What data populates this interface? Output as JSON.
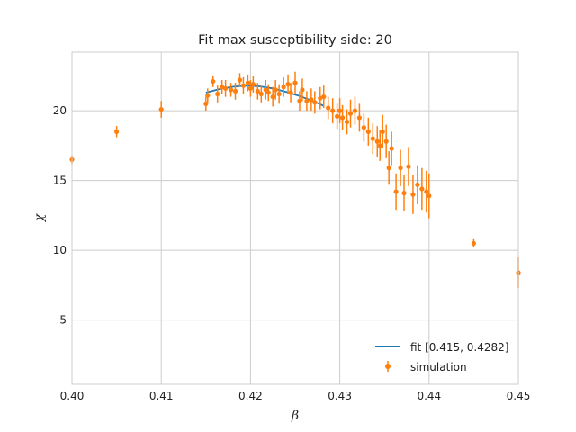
{
  "chart_data": {
    "type": "scatter",
    "title": "Fit max susceptibility side: 20",
    "xlabel": "β",
    "ylabel": "χ",
    "xlim": [
      0.4,
      0.45
    ],
    "ylim": [
      0.4,
      24.2
    ],
    "xticks": [
      "0.40",
      "0.41",
      "0.42",
      "0.43",
      "0.44",
      "0.45"
    ],
    "xtick_values": [
      0.4,
      0.41,
      0.42,
      0.43,
      0.44,
      0.45
    ],
    "yticks": [
      "5",
      "10",
      "15",
      "20"
    ],
    "ytick_values": [
      5,
      10,
      15,
      20
    ],
    "grid": true,
    "legend_position": "lower-right",
    "colors": {
      "fit": "#1f77b4",
      "simulation": "#ff7f0e",
      "grid": "#cccccc",
      "frame": "#cccccc"
    },
    "series": [
      {
        "name": "fit [0.415, 0.4282]",
        "kind": "line",
        "x": [
          0.415,
          0.4165,
          0.418,
          0.4195,
          0.421,
          0.4225,
          0.424,
          0.4255,
          0.427,
          0.4282
        ],
        "y": [
          21.3,
          21.55,
          21.72,
          21.8,
          21.75,
          21.6,
          21.35,
          21.05,
          20.7,
          20.35
        ]
      },
      {
        "name": "simulation",
        "kind": "errorbar",
        "x": [
          0.4,
          0.405,
          0.41,
          0.415,
          0.4152,
          0.4158,
          0.4163,
          0.4168,
          0.4172,
          0.4178,
          0.4183,
          0.4188,
          0.4192,
          0.4197,
          0.42,
          0.4203,
          0.4208,
          0.4212,
          0.4217,
          0.422,
          0.4225,
          0.4228,
          0.4232,
          0.4237,
          0.4242,
          0.4245,
          0.425,
          0.4255,
          0.4258,
          0.4263,
          0.4268,
          0.4272,
          0.4278,
          0.4282,
          0.4287,
          0.4292,
          0.4297,
          0.43,
          0.4303,
          0.4308,
          0.4312,
          0.4317,
          0.4322,
          0.4327,
          0.4332,
          0.4337,
          0.4342,
          0.4345,
          0.4348,
          0.4352,
          0.4355,
          0.4358,
          0.4363,
          0.4368,
          0.4372,
          0.4377,
          0.4382,
          0.4387,
          0.4392,
          0.4397,
          0.44,
          0.445,
          0.45
        ],
        "y": [
          16.5,
          18.5,
          20.1,
          20.5,
          21.1,
          22.1,
          21.2,
          21.7,
          21.6,
          21.5,
          21.4,
          22.2,
          21.8,
          22.0,
          21.6,
          21.9,
          21.4,
          21.2,
          21.5,
          21.3,
          21.0,
          21.5,
          21.2,
          21.7,
          21.9,
          21.3,
          22.0,
          20.7,
          21.5,
          20.7,
          20.8,
          20.6,
          20.9,
          21.0,
          20.2,
          20.0,
          19.6,
          20.0,
          19.5,
          19.2,
          19.8,
          20.0,
          19.5,
          18.8,
          18.5,
          18.0,
          17.8,
          17.5,
          18.5,
          17.8,
          15.9,
          17.3,
          14.2,
          15.9,
          14.1,
          16.0,
          14.0,
          14.7,
          14.4,
          14.2,
          13.9,
          10.5,
          8.4
        ],
        "yerr": [
          0.3,
          0.4,
          0.6,
          0.5,
          0.5,
          0.4,
          0.6,
          0.5,
          0.6,
          0.5,
          0.6,
          0.5,
          0.6,
          0.6,
          0.6,
          0.6,
          0.6,
          0.6,
          0.7,
          0.6,
          0.7,
          0.7,
          0.7,
          0.7,
          0.7,
          0.7,
          0.8,
          0.7,
          0.8,
          0.7,
          0.8,
          0.8,
          0.8,
          0.8,
          0.8,
          0.9,
          0.9,
          0.9,
          0.9,
          0.9,
          1.0,
          1.0,
          1.0,
          1.0,
          1.0,
          1.1,
          1.1,
          1.1,
          1.2,
          1.2,
          1.2,
          1.2,
          1.3,
          1.3,
          1.3,
          1.4,
          1.4,
          1.4,
          1.5,
          1.5,
          1.6,
          0.3,
          1.1
        ]
      }
    ]
  }
}
